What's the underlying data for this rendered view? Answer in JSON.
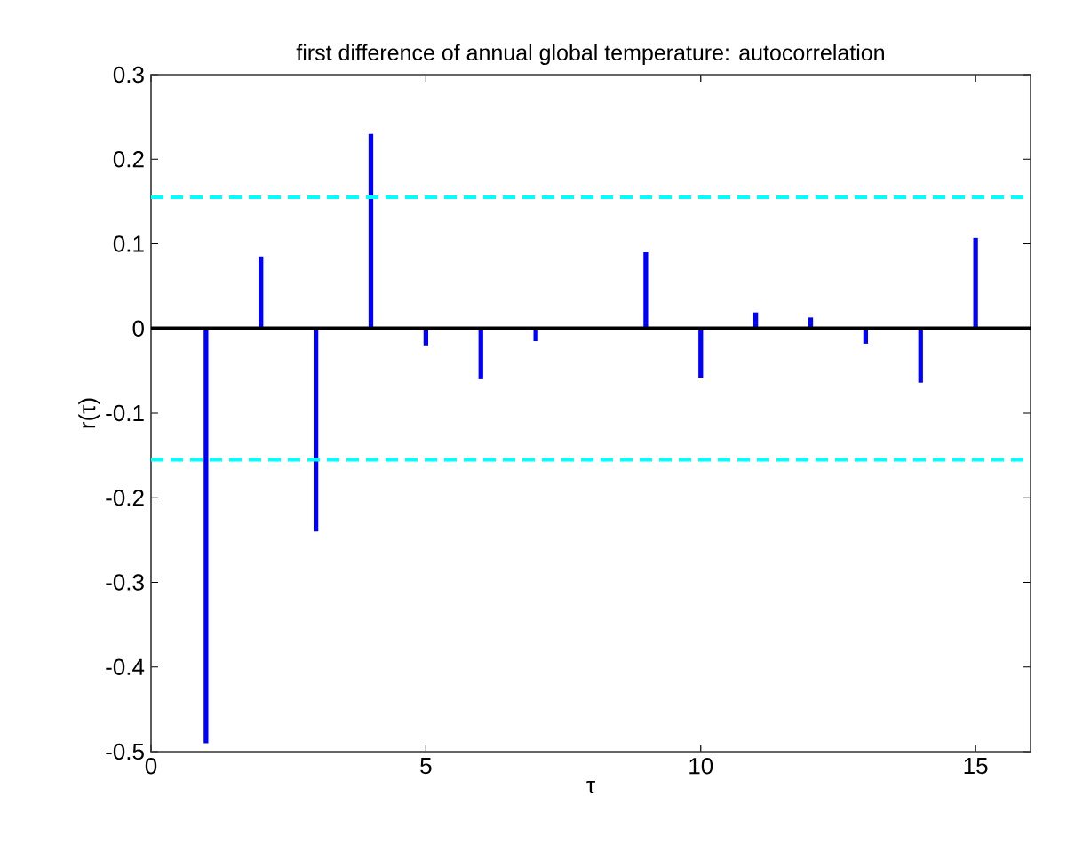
{
  "chart_data": {
    "type": "bar",
    "title": "first difference of annual global temperature: autocorrelation",
    "xlabel": "τ",
    "ylabel": "r(τ)",
    "x": [
      1,
      2,
      3,
      4,
      5,
      6,
      7,
      8,
      9,
      10,
      11,
      12,
      13,
      14,
      15
    ],
    "values": [
      -0.49,
      0.085,
      -0.24,
      0.23,
      -0.02,
      -0.06,
      -0.015,
      0,
      0.09,
      -0.058,
      0.019,
      0.013,
      -0.018,
      -0.064,
      0.107
    ],
    "color": "#0000ff",
    "xlim": [
      0,
      16
    ],
    "xticks": [
      0,
      5,
      10,
      15
    ],
    "ylim": [
      -0.5,
      0.3
    ],
    "yticks": [
      -0.5,
      -0.4,
      -0.3,
      -0.2,
      -0.1,
      0,
      0.1,
      0.2,
      0.3
    ],
    "ref_lines": [
      {
        "axis": "y",
        "value": 0.155,
        "color": "#00ffff",
        "line_style": "dashed"
      },
      {
        "axis": "y",
        "value": -0.155,
        "color": "#00ffff",
        "line_style": "dashed"
      },
      {
        "axis": "y",
        "value": 0,
        "color": "#000000",
        "line_style": "solid"
      }
    ],
    "grid": false
  }
}
